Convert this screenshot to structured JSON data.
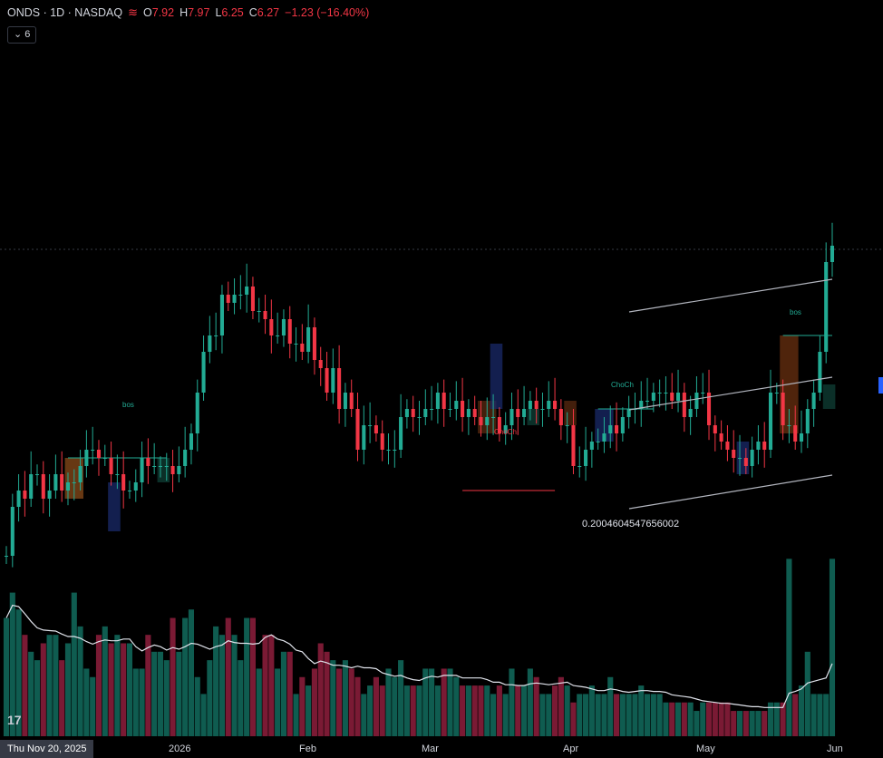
{
  "header": {
    "symbol": "ONDS · 1D · NASDAQ",
    "open_label": "O",
    "open": "7.92",
    "high_label": "H",
    "high": "7.97",
    "low_label": "L",
    "low": "6.25",
    "close_label": "C",
    "close": "6.27",
    "change": "−1.23 (−16.40%)"
  },
  "indicator_button": {
    "label": "6"
  },
  "x_axis": {
    "current_label": "Thu Nov 20, 2025",
    "labels": [
      "2026",
      "Feb",
      "Mar",
      "Apr",
      "May",
      "Jun"
    ]
  },
  "annotations": {
    "bos_1": "bos",
    "bos_2": "bos",
    "choch_1": "ChoCh",
    "choch_2": "ChoCh",
    "fib_value": "0.2004604547656002"
  },
  "colors": {
    "up": "#22ab94",
    "down": "#f23645",
    "vol_up": "#0f5c50",
    "vol_down": "#7a1a34",
    "background": "#000000",
    "text": "#d1d4dc",
    "grid_line": "#363a45"
  },
  "chart_data": {
    "type": "candlestick",
    "title": "ONDS · 1D · NASDAQ",
    "ylim": [
      4,
      9
    ],
    "series": [
      {
        "ohlc_open": [
          4.3,
          4.3,
          4.9,
          5.1,
          5.0,
          5.3,
          5.3,
          5.0,
          5.1,
          5.3,
          5.1,
          5.2,
          5.2,
          5.4,
          5.6,
          5.6,
          5.5,
          5.5,
          5.3,
          5.3,
          5.1,
          5.1,
          5.2,
          5.5,
          5.4,
          5.4,
          5.4,
          5.4,
          5.3,
          5.4,
          5.6,
          5.8,
          6.3,
          6.8,
          7.0,
          7.0,
          7.5,
          7.4,
          7.5,
          7.5,
          7.6,
          7.3,
          7.3,
          7.2,
          7.0,
          7.0,
          7.2,
          6.9,
          6.9,
          6.8,
          7.1,
          6.7,
          6.6,
          6.3,
          6.6,
          6.1,
          6.3,
          6.1,
          5.6,
          5.9,
          5.9,
          5.8,
          5.6,
          5.6,
          5.6,
          6.0,
          6.1,
          6.0,
          6.0,
          6.1,
          6.1,
          6.3,
          6.1,
          6.1,
          6.2,
          6.0,
          6.1,
          6.0,
          5.9,
          6.0,
          6.0,
          5.8,
          5.9,
          6.1,
          6.0,
          6.1,
          6.2,
          6.1,
          6.1,
          6.2,
          6.1,
          5.9,
          5.9,
          5.4,
          5.4,
          5.6,
          5.7,
          5.7,
          5.8,
          5.9,
          5.8,
          6.0,
          6.1,
          6.1,
          6.2,
          6.2,
          6.3,
          6.3,
          6.3,
          6.2,
          6.3,
          6.0,
          6.1,
          6.3,
          6.3,
          5.9,
          5.8,
          5.7,
          5.6,
          5.5,
          5.5,
          5.4,
          5.6,
          5.7,
          5.6,
          6.3,
          6.3,
          5.9,
          5.9,
          5.7,
          5.8,
          6.1,
          6.3,
          6.8,
          7.9
        ],
        "ohlc_close": [
          4.3,
          4.9,
          5.1,
          5.0,
          5.3,
          5.3,
          5.0,
          5.1,
          5.3,
          5.1,
          5.2,
          5.2,
          5.4,
          5.6,
          5.6,
          5.5,
          5.5,
          5.3,
          5.3,
          5.1,
          5.1,
          5.2,
          5.5,
          5.4,
          5.4,
          5.4,
          5.4,
          5.3,
          5.4,
          5.6,
          5.8,
          6.3,
          6.8,
          7.0,
          7.0,
          7.5,
          7.4,
          7.5,
          7.5,
          7.6,
          7.3,
          7.3,
          7.2,
          7.0,
          7.0,
          7.2,
          6.9,
          6.9,
          6.8,
          7.1,
          6.7,
          6.6,
          6.3,
          6.6,
          6.1,
          6.3,
          6.1,
          5.6,
          5.9,
          5.9,
          5.8,
          5.6,
          5.6,
          5.6,
          6.0,
          6.1,
          6.0,
          6.0,
          6.1,
          6.1,
          6.3,
          6.1,
          6.1,
          6.2,
          6.0,
          6.1,
          6.0,
          5.9,
          6.0,
          6.0,
          5.8,
          5.9,
          6.1,
          6.0,
          6.1,
          6.2,
          6.1,
          6.1,
          6.2,
          6.1,
          5.9,
          5.9,
          5.4,
          5.4,
          5.6,
          5.7,
          5.7,
          5.8,
          5.9,
          5.8,
          6.0,
          6.1,
          6.1,
          6.2,
          6.2,
          6.3,
          6.3,
          6.3,
          6.2,
          6.3,
          6.0,
          6.1,
          6.3,
          6.3,
          5.9,
          5.8,
          5.7,
          5.6,
          5.5,
          5.5,
          5.4,
          5.6,
          5.7,
          5.6,
          6.3,
          6.3,
          5.9,
          5.9,
          5.7,
          5.8,
          6.1,
          6.3,
          6.8,
          7.9,
          8.1
        ],
        "volume": [
          14,
          17,
          15,
          12,
          10,
          9,
          11,
          12,
          12,
          9,
          11,
          17,
          13,
          8,
          7,
          12,
          13,
          11,
          12,
          11,
          11,
          8,
          8,
          12,
          10,
          10,
          9,
          14,
          10,
          14,
          15,
          7,
          5,
          9,
          13,
          12,
          14,
          12,
          9,
          14,
          14,
          8,
          12,
          12,
          8,
          10,
          10,
          5,
          7,
          6,
          8,
          11,
          10,
          9,
          8,
          9,
          8,
          7,
          5,
          6,
          7,
          6,
          8,
          7,
          9,
          6,
          6,
          6,
          8,
          8,
          6,
          8,
          8,
          7,
          6,
          6,
          6,
          6,
          6,
          5,
          6,
          5,
          8,
          6,
          6,
          8,
          7,
          5,
          5,
          6,
          7,
          6,
          4,
          5,
          5,
          6,
          5,
          5,
          7,
          5,
          5,
          5,
          5,
          6,
          5,
          5,
          5,
          4,
          4,
          4,
          4,
          4,
          3,
          4,
          4,
          4,
          4,
          4,
          3,
          3,
          3,
          3,
          3,
          3,
          4,
          4,
          4,
          21,
          5,
          6,
          10,
          5,
          5,
          5,
          21,
          9,
          6
        ]
      }
    ]
  }
}
